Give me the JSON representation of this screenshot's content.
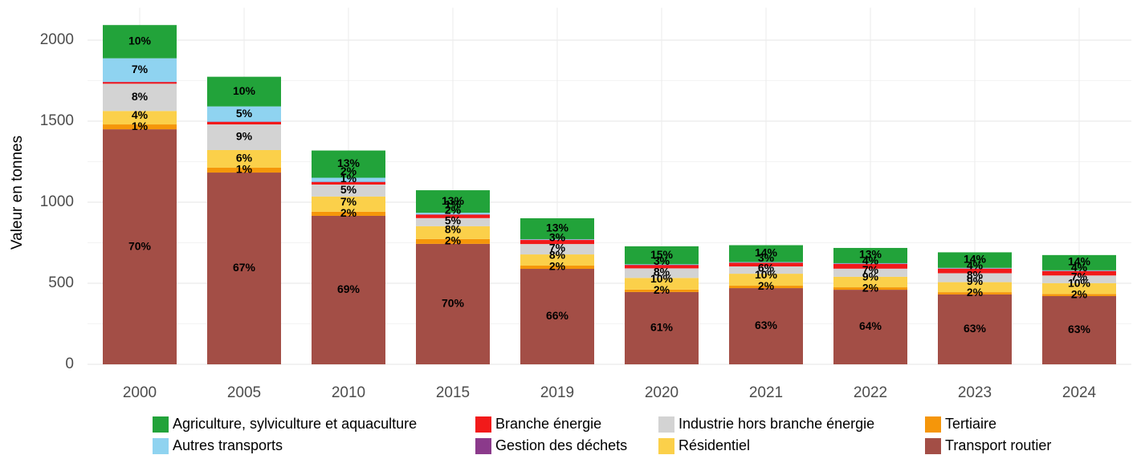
{
  "chart_data": {
    "type": "bar",
    "stacked": true,
    "ylabel": "Valeur en tonnes",
    "categories": [
      "2000",
      "2005",
      "2010",
      "2015",
      "2019",
      "2020",
      "2021",
      "2022",
      "2023",
      "2024"
    ],
    "ylim": [
      0,
      2200
    ],
    "yticks": [
      0,
      500,
      1000,
      1500,
      2000
    ],
    "grid": true,
    "legend": "bottom",
    "series": [
      {
        "name": "Transport routier",
        "color": "#a34e46",
        "values": [
          1450,
          1183,
          916,
          743,
          589,
          446,
          470,
          460,
          431,
          421
        ],
        "value_labels": [
          "70%",
          "67%",
          "69%",
          "70%",
          "66%",
          "61%",
          "63%",
          "64%",
          "63%",
          "63%"
        ]
      },
      {
        "name": "Tertiaire",
        "color": "#f5960a",
        "values": [
          30,
          30,
          25,
          30,
          20,
          15,
          15,
          15,
          14,
          13
        ],
        "value_labels": [
          "1%",
          "1%",
          "2%",
          "2%",
          "2%",
          "2%",
          "2%",
          "2%",
          "2%",
          "2%"
        ]
      },
      {
        "name": "Résidentiel",
        "color": "#fbd04a",
        "values": [
          83,
          109,
          94,
          79,
          69,
          72,
          74,
          65,
          62,
          67
        ],
        "value_labels": [
          "4%",
          "6%",
          "7%",
          "8%",
          "8%",
          "10%",
          "10%",
          "9%",
          "9%",
          "10%"
        ]
      },
      {
        "name": "Industrie hors branche énergie",
        "color": "#d3d3d3",
        "values": [
          168,
          158,
          74,
          50,
          64,
          59,
          45,
          50,
          55,
          47
        ],
        "value_labels": [
          "8%",
          "9%",
          "5%",
          "5%",
          "7%",
          "8%",
          "6%",
          "7%",
          "8%",
          "7%"
        ]
      },
      {
        "name": "Branche énergie",
        "color": "#f21a1a",
        "values": [
          10,
          15,
          15,
          21,
          25,
          20,
          22,
          29,
          28,
          27
        ],
        "value_labels": [
          null,
          null,
          "1%",
          "2%",
          "3%",
          "3%",
          "3%",
          "4%",
          "4%",
          "4%"
        ]
      },
      {
        "name": "Gestion des déchets",
        "color": "#8b3a8b",
        "values": [
          2,
          2,
          2,
          2,
          2,
          2,
          2,
          2,
          2,
          2
        ]
      },
      {
        "name": "Autres transports",
        "color": "#8fd3f0",
        "values": [
          145,
          94,
          25,
          10,
          3,
          3,
          3,
          3,
          3,
          3
        ],
        "value_labels": [
          "7%",
          "5%",
          "2%",
          "1%",
          null,
          null,
          null,
          null,
          null,
          null
        ]
      },
      {
        "name": "Agriculture, sylviculture et aquaculture",
        "color": "#22a33a",
        "values": [
          205,
          183,
          168,
          139,
          129,
          111,
          104,
          94,
          96,
          94
        ],
        "value_labels": [
          "10%",
          "10%",
          "13%",
          "13%",
          "13%",
          "15%",
          "14%",
          "13%",
          "14%",
          "14%"
        ]
      }
    ]
  }
}
